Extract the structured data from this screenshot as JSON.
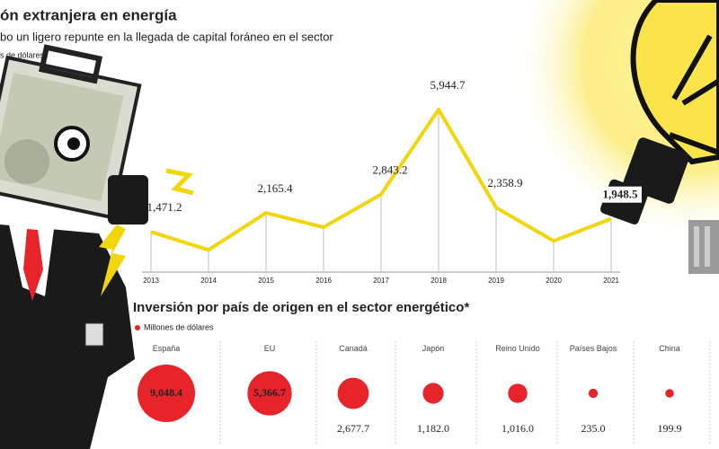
{
  "chart_data": [
    {
      "type": "line",
      "title": "ón extranjera en energía",
      "subtitle": "bo un ligero repunte en la llegada de capital foráneo en el sector",
      "unit": "s de dólares",
      "categories": [
        "2013",
        "2014",
        "2015",
        "2016",
        "2017",
        "2018",
        "2019",
        "2020",
        "2021"
      ],
      "values": [
        1471.2,
        810,
        2165.4,
        1640,
        2843.2,
        5944.7,
        2358.9,
        1140,
        1948.5
      ],
      "value_labels": [
        "1,471.2",
        null,
        "2,165.4",
        null,
        "2,843.2",
        "5,944.7",
        "2,358.9",
        null,
        "1,948.5"
      ],
      "color": "#f2d60c"
    },
    {
      "type": "bubble",
      "title": "Inversión por país de origen en el sector energético*",
      "legend": "Millones de dólares",
      "categories": [
        "España",
        "EU",
        "Canadá",
        "Japón",
        "Reino Unido",
        "Países Bajos",
        "China"
      ],
      "values": [
        9048.4,
        5366.7,
        2677.7,
        1182.0,
        1016.0,
        235.0,
        199.9
      ],
      "value_labels": [
        "9,048.4",
        "5,366.7",
        "2,677.7",
        "1,182.0",
        "1,016.0",
        "235.0",
        "199.9"
      ],
      "color": "#e8242b"
    }
  ]
}
